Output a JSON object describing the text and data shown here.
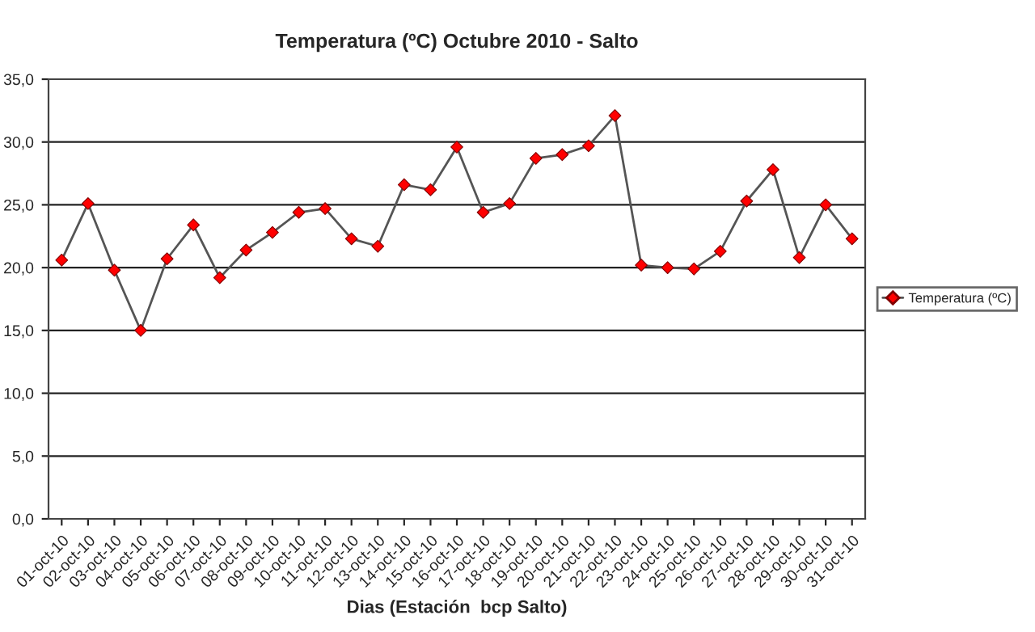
{
  "chart_data": {
    "type": "line",
    "title": "Temperatura (ºC) Octubre 2010 - Salto",
    "xlabel": "Dias (Estación  bcp Salto)",
    "categories": [
      "01-oct-10",
      "02-oct-10",
      "03-oct-10",
      "04-oct-10",
      "05-oct-10",
      "06-oct-10",
      "07-oct-10",
      "08-oct-10",
      "09-oct-10",
      "10-oct-10",
      "11-oct-10",
      "12-oct-10",
      "13-oct-10",
      "14-oct-10",
      "15-oct-10",
      "16-oct-10",
      "17-oct-10",
      "18-oct-10",
      "19-oct-10",
      "20-oct-10",
      "21-oct-10",
      "22-oct-10",
      "23-oct-10",
      "24-oct-10",
      "25-oct-10",
      "26-oct-10",
      "27-oct-10",
      "28-oct-10",
      "29-oct-10",
      "30-oct-10",
      "31-oct-10"
    ],
    "series": [
      {
        "name": "Temperatura (ºC)",
        "color": "#ff0000",
        "values": [
          20.6,
          25.1,
          19.8,
          15.0,
          20.7,
          23.4,
          19.2,
          21.4,
          22.8,
          24.4,
          24.7,
          22.3,
          21.7,
          26.6,
          26.2,
          29.6,
          24.4,
          25.1,
          28.7,
          29.0,
          29.7,
          32.1,
          20.2,
          20.0,
          19.9,
          21.3,
          25.3,
          27.8,
          20.8,
          25.0,
          22.3
        ]
      }
    ],
    "ylim": [
      0,
      35
    ],
    "yticks": [
      {
        "value": 0,
        "label": "0,0"
      },
      {
        "value": 5,
        "label": "5,0"
      },
      {
        "value": 10,
        "label": "10,0"
      },
      {
        "value": 15,
        "label": "15,0"
      },
      {
        "value": 20,
        "label": "20,0"
      },
      {
        "value": 25,
        "label": "25,0"
      },
      {
        "value": 30,
        "label": "30,0"
      },
      {
        "value": 35,
        "label": "35,0"
      }
    ],
    "grid": "y",
    "legend": "right",
    "marker": "diamond",
    "line_style": "solid"
  }
}
